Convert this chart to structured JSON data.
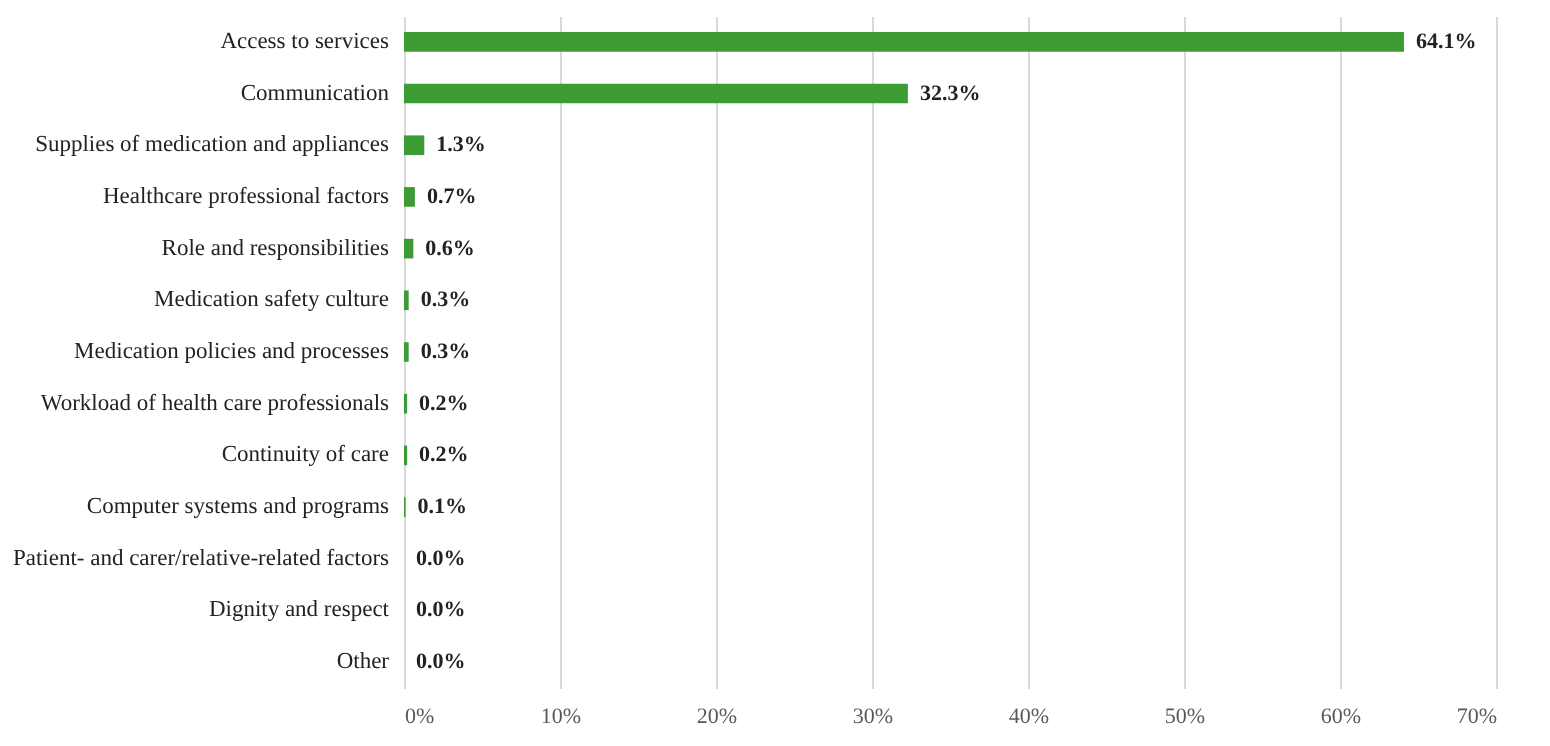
{
  "chart_data": {
    "type": "bar",
    "orientation": "horizontal",
    "categories": [
      "Access to services",
      "Communication",
      "Supplies of medication and appliances",
      "Healthcare professional factors",
      "Role and responsibilities",
      "Medication safety culture",
      "Medication policies and processes",
      "Workload of health care professionals",
      "Continuity of care",
      "Computer systems and programs",
      "Patient- and carer/relative-related factors",
      "Dignity and respect",
      "Other"
    ],
    "values": [
      64.1,
      32.3,
      1.3,
      0.7,
      0.6,
      0.3,
      0.3,
      0.2,
      0.2,
      0.1,
      0.0,
      0.0,
      0.0
    ],
    "value_labels": [
      "64.1%",
      "32.3%",
      "1.3%",
      "0.7%",
      "0.6%",
      "0.3%",
      "0.3%",
      "0.2%",
      "0.2%",
      "0.1%",
      "0.0%",
      "0.0%",
      "0.0%"
    ],
    "color": "#3d9b35",
    "xlim": [
      0,
      70
    ],
    "xticks": [
      {
        "value": 0,
        "label": "0%"
      },
      {
        "value": 10,
        "label": "10%"
      },
      {
        "value": 20,
        "label": "20%"
      },
      {
        "value": 30,
        "label": "30%"
      },
      {
        "value": 40,
        "label": "40%"
      },
      {
        "value": 50,
        "label": "50%"
      },
      {
        "value": 60,
        "label": "60%"
      },
      {
        "value": 70,
        "label": "70%"
      }
    ],
    "grid": "x"
  }
}
